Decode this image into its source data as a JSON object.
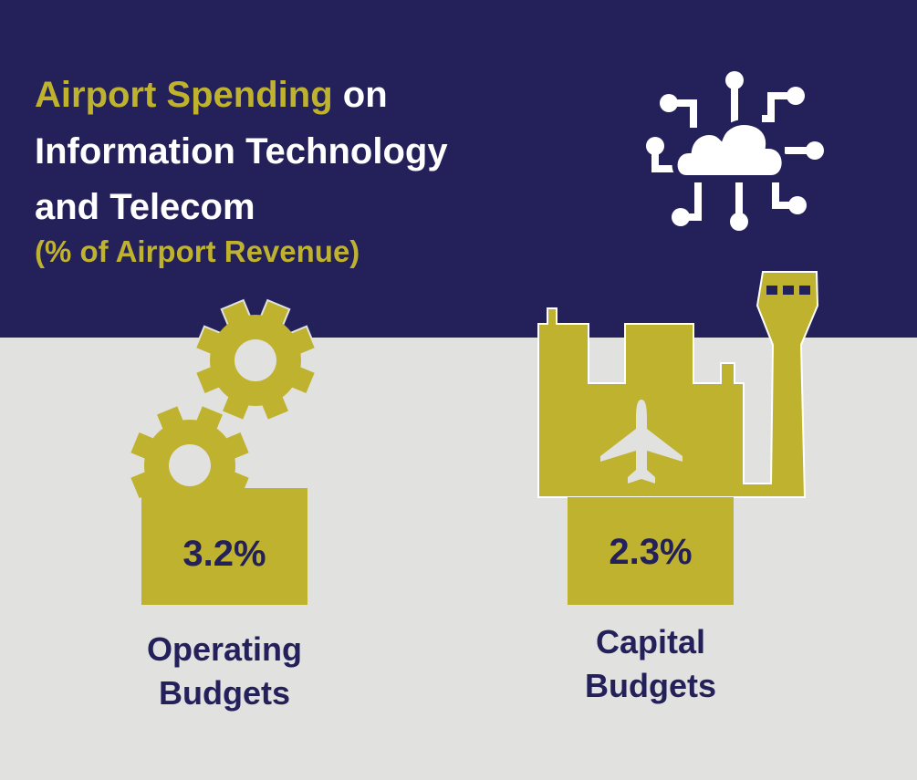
{
  "header": {
    "title_highlight": "Airport Spending",
    "title_rest": "on",
    "title_line2": "Information Technology",
    "title_line3": "and Telecom",
    "subtitle": "(% of Airport Revenue)"
  },
  "items": [
    {
      "value": "3.2%",
      "label_line1": "Operating",
      "label_line2": "Budgets"
    },
    {
      "value": "2.3%",
      "label_line1": "Capital",
      "label_line2": "Budgets"
    }
  ]
}
